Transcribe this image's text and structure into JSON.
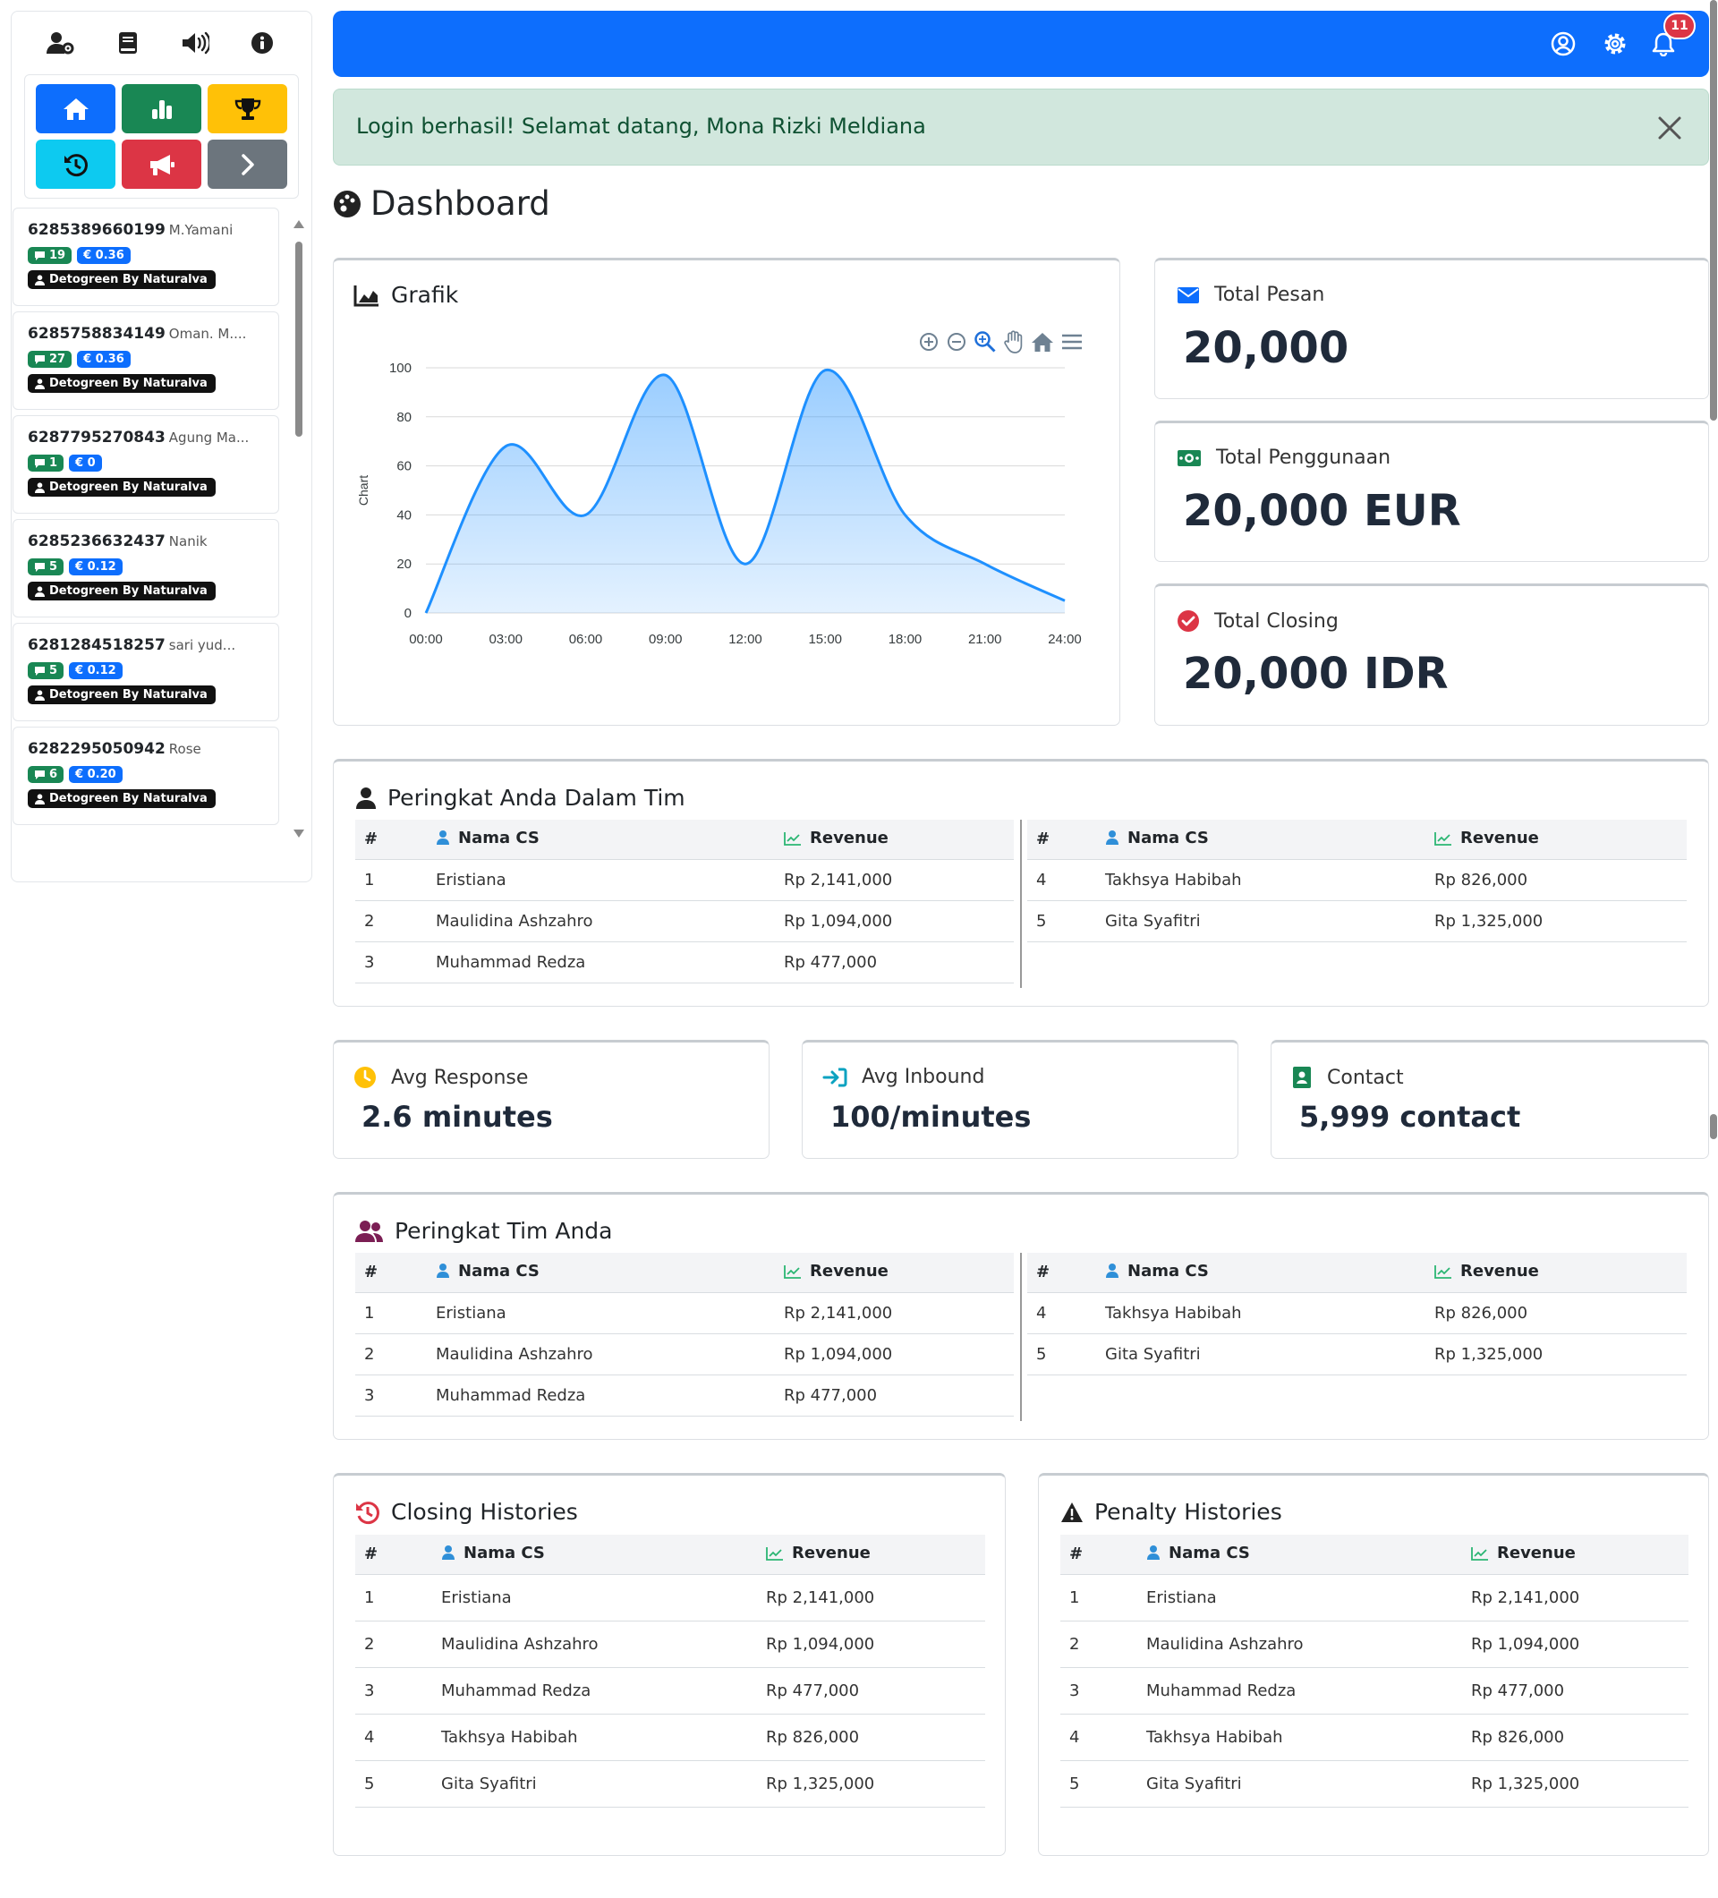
{
  "sidebar": {
    "top_icons": [
      "user-gear-icon",
      "book-icon",
      "volume-icon",
      "info-icon"
    ],
    "quick_buttons": [
      {
        "name": "home-button",
        "icon": "home-icon",
        "color": "#0d6efd"
      },
      {
        "name": "stats-button",
        "icon": "bar-chart-icon",
        "color": "#198754"
      },
      {
        "name": "trophy-button",
        "icon": "trophy-icon",
        "color": "#ffc107"
      },
      {
        "name": "history-button",
        "icon": "history-icon",
        "color": "#0dcaf0"
      },
      {
        "name": "announce-button",
        "icon": "megaphone-icon",
        "color": "#dc3545"
      },
      {
        "name": "next-button",
        "icon": "chevron-right-icon",
        "color": "#6c757d"
      }
    ],
    "conversations": [
      {
        "phone": "6285389660199",
        "name": "M.Yamani",
        "messages": "19",
        "amount": "€ 0.36",
        "tag": "Detogreen By Naturalva"
      },
      {
        "phone": "6285758834149",
        "name": "Oman. M....",
        "messages": "27",
        "amount": "€ 0.36",
        "tag": "Detogreen By Naturalva"
      },
      {
        "phone": "6287795270843",
        "name": "Agung Ma...",
        "messages": "1",
        "amount": "€ 0",
        "tag": "Detogreen By Naturalva"
      },
      {
        "phone": "6285236632437",
        "name": "Nanik",
        "messages": "5",
        "amount": "€ 0.12",
        "tag": "Detogreen By Naturalva"
      },
      {
        "phone": "6281284518257",
        "name": "sari yud...",
        "messages": "5",
        "amount": "€ 0.12",
        "tag": "Detogreen By Naturalva"
      },
      {
        "phone": "6282295050942",
        "name": "Rose",
        "messages": "6",
        "amount": "€ 0.20",
        "tag": "Detogreen By Naturalva"
      }
    ]
  },
  "topbar": {
    "color": "#0d6efd",
    "icons": [
      "user-circle-icon",
      "gear-icon",
      "bell-icon"
    ],
    "notification_count": "11"
  },
  "alert": {
    "message": "Login berhasil! Selamat datang, Mona Rizki Meldiana"
  },
  "page": {
    "title": "Dashboard"
  },
  "chart_card": {
    "title": "Grafik",
    "toolbar_icons": [
      "zoom-in-icon",
      "zoom-out-icon",
      "zoom-select-icon",
      "pan-hand-icon",
      "reset-home-icon",
      "menu-icon"
    ]
  },
  "chart_data": {
    "type": "area",
    "x": [
      "00:00",
      "03:00",
      "06:00",
      "09:00",
      "12:00",
      "15:00",
      "18:00",
      "21:00",
      "24:00"
    ],
    "values": [
      0,
      68,
      40,
      97,
      20,
      99,
      40,
      20,
      5
    ],
    "ylabel": "Chart",
    "ylim": [
      0,
      100
    ],
    "yticks": [
      "0",
      "20",
      "40",
      "60",
      "80",
      "100"
    ],
    "grid": true,
    "color": "#1e90ff"
  },
  "stats": {
    "total_pesan": {
      "label": "Total Pesan",
      "value": "20,000"
    },
    "total_penggunaan": {
      "label": "Total Penggunaan",
      "value": "20,000 EUR"
    },
    "total_closing": {
      "label": "Total Closing",
      "value": "20,000 IDR"
    }
  },
  "columns": {
    "num": "#",
    "name": "Nama CS",
    "revenue": "Revenue"
  },
  "rank_individual": {
    "title": "Peringkat Anda Dalam Tim",
    "left": [
      {
        "n": "1",
        "name": "Eristiana",
        "revenue": "Rp 2,141,000"
      },
      {
        "n": "2",
        "name": "Maulidina Ashzahro",
        "revenue": "Rp 1,094,000"
      },
      {
        "n": "3",
        "name": "Muhammad Redza",
        "revenue": "Rp 477,000"
      }
    ],
    "right": [
      {
        "n": "4",
        "name": "Takhsya Habibah",
        "revenue": "Rp 826,000"
      },
      {
        "n": "5",
        "name": "Gita Syafitri",
        "revenue": "Rp 1,325,000"
      }
    ]
  },
  "metrics": {
    "avg_response": {
      "label": "Avg Response",
      "value": "2.6 minutes"
    },
    "avg_inbound": {
      "label": "Avg Inbound",
      "value": "100/minutes"
    },
    "contact": {
      "label": "Contact",
      "value": "5,999 contact"
    }
  },
  "rank_team": {
    "title": "Peringkat Tim Anda",
    "left": [
      {
        "n": "1",
        "name": "Eristiana",
        "revenue": "Rp 2,141,000"
      },
      {
        "n": "2",
        "name": "Maulidina Ashzahro",
        "revenue": "Rp 1,094,000"
      },
      {
        "n": "3",
        "name": "Muhammad Redza",
        "revenue": "Rp 477,000"
      }
    ],
    "right": [
      {
        "n": "4",
        "name": "Takhsya Habibah",
        "revenue": "Rp 826,000"
      },
      {
        "n": "5",
        "name": "Gita Syafitri",
        "revenue": "Rp 1,325,000"
      }
    ]
  },
  "closing_histories": {
    "title": "Closing Histories",
    "rows": [
      {
        "n": "1",
        "name": "Eristiana",
        "revenue": "Rp 2,141,000"
      },
      {
        "n": "2",
        "name": "Maulidina Ashzahro",
        "revenue": "Rp 1,094,000"
      },
      {
        "n": "3",
        "name": "Muhammad Redza",
        "revenue": "Rp 477,000"
      },
      {
        "n": "4",
        "name": "Takhsya Habibah",
        "revenue": "Rp 826,000"
      },
      {
        "n": "5",
        "name": "Gita Syafitri",
        "revenue": "Rp 1,325,000"
      }
    ]
  },
  "penalty_histories": {
    "title": "Penalty Histories",
    "rows": [
      {
        "n": "1",
        "name": "Eristiana",
        "revenue": "Rp 2,141,000"
      },
      {
        "n": "2",
        "name": "Maulidina Ashzahro",
        "revenue": "Rp 1,094,000"
      },
      {
        "n": "3",
        "name": "Muhammad Redza",
        "revenue": "Rp 477,000"
      },
      {
        "n": "4",
        "name": "Takhsya Habibah",
        "revenue": "Rp 826,000"
      },
      {
        "n": "5",
        "name": "Gita Syafitri",
        "revenue": "Rp 1,325,000"
      }
    ]
  }
}
